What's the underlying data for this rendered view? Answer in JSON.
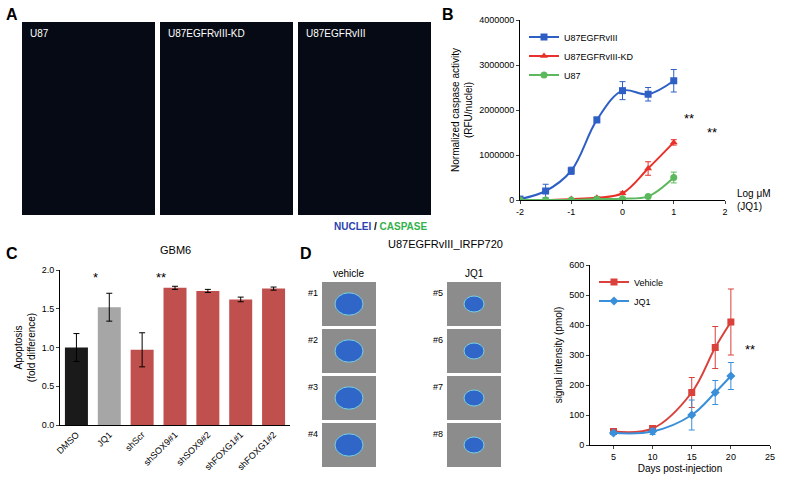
{
  "figure": {
    "panel_labels": [
      "A",
      "B",
      "C",
      "D"
    ],
    "panel_A": {
      "image_titles": [
        "U87",
        "U87EGFRvIII-KD",
        "U87EGFRvIII"
      ],
      "stain_legend": [
        {
          "text": "NUCLEI",
          "color": "#2c3fb0"
        },
        {
          "text": " / ",
          "color": "#000000"
        },
        {
          "text": "CASPASE",
          "color": "#33b24a"
        }
      ]
    },
    "panel_D": {
      "group_labels": [
        "vehicle",
        "JQ1"
      ],
      "mouse_labels": [
        [
          "#1",
          "#2",
          "#3",
          "#4"
        ],
        [
          "#5",
          "#6",
          "#7",
          "#8"
        ]
      ]
    }
  },
  "chart_data": [
    {
      "type": "line",
      "xlabel": "Log μM\n(JQ1)",
      "ylabel": "Normalized caspase activity\n(RFU/nuclei)",
      "x": [
        -2,
        -1.5,
        -1,
        -0.5,
        0,
        0.5,
        1
      ],
      "xlim": [
        -2,
        2
      ],
      "xticks": [
        -2,
        -1,
        0,
        1,
        2
      ],
      "ylim": [
        0,
        4000000
      ],
      "yticks": [
        0,
        1000000,
        2000000,
        3000000,
        4000000
      ],
      "legend": "top left",
      "series": [
        {
          "name": "U87EGFRvIII",
          "color": "#2e5fc4",
          "marker": "square",
          "values": [
            20000,
            200000,
            650000,
            1780000,
            2430000,
            2350000,
            2650000
          ],
          "errors": [
            20000,
            150000,
            80000,
            60000,
            200000,
            150000,
            250000
          ]
        },
        {
          "name": "U87EGFRvIII-KD",
          "color": "#e8312a",
          "marker": "triangle-up",
          "values": [
            0,
            0,
            20000,
            50000,
            150000,
            700000,
            1280000
          ],
          "errors": [
            0,
            0,
            10000,
            20000,
            30000,
            150000,
            60000
          ]
        },
        {
          "name": "U87",
          "color": "#5cb85c",
          "marker": "circle",
          "values": [
            0,
            0,
            0,
            20000,
            30000,
            80000,
            500000
          ],
          "errors": [
            0,
            0,
            0,
            10000,
            10000,
            20000,
            120000
          ]
        }
      ],
      "annotations": [
        {
          "text": "**",
          "x": 1.3,
          "y": 1800000
        },
        {
          "text": "**",
          "x": 1.75,
          "y": 1500000
        }
      ]
    },
    {
      "type": "bar",
      "title": "GBM6",
      "ylabel": "Apoptosis\n(fold difference)",
      "categories": [
        "DMSO",
        "JQ1",
        "shScr",
        "shSOX9#1",
        "shSOX9#2",
        "shFOXG1#1",
        "shFOXG1#2"
      ],
      "values": [
        1.0,
        1.52,
        0.97,
        1.77,
        1.73,
        1.62,
        1.76
      ],
      "errors": [
        0.18,
        0.18,
        0.22,
        0.02,
        0.02,
        0.03,
        0.02
      ],
      "colors": [
        "#1a1a1a",
        "#a6a6a6",
        "#c0504d",
        "#c0504d",
        "#c0504d",
        "#c0504d",
        "#c0504d"
      ],
      "ylim": [
        0,
        2
      ],
      "yticks": [
        {
          "value": 0,
          "label": "0.0"
        },
        {
          "value": 0.5,
          "label": "0.5"
        },
        {
          "value": 1,
          "label": "1.0"
        },
        {
          "value": 1.5,
          "label": "1.5"
        },
        {
          "value": 2,
          "label": "2.0"
        }
      ],
      "annotations": [
        {
          "text": "*",
          "category": "JQ1",
          "y": 1.9
        },
        {
          "text": "**",
          "category": "shSOX9#1",
          "y": 1.9
        }
      ]
    },
    {
      "type": "line",
      "title": "U87EGFRvIII_IRFP720",
      "xlabel": "Days post-injection",
      "ylabel": "signal intensity (pmol)",
      "x": [
        5,
        10,
        15,
        18,
        20
      ],
      "xlim": [
        2,
        25
      ],
      "xticks": [
        5,
        10,
        15,
        20,
        25
      ],
      "ylim": [
        0,
        600
      ],
      "yticks": [
        0,
        100,
        200,
        300,
        400,
        500,
        600
      ],
      "legend": "top left",
      "series": [
        {
          "name": "Vehicle",
          "color": "#d9413a",
          "marker": "square",
          "values": [
            45,
            55,
            175,
            325,
            410
          ],
          "errors": [
            5,
            10,
            50,
            70,
            110
          ]
        },
        {
          "name": "JQ1",
          "color": "#3a8fd9",
          "marker": "diamond",
          "values": [
            40,
            45,
            100,
            175,
            230
          ],
          "errors": [
            5,
            10,
            50,
            40,
            45
          ]
        }
      ],
      "annotations": [
        {
          "text": "**",
          "x": 22.5,
          "y": 320
        }
      ]
    }
  ]
}
